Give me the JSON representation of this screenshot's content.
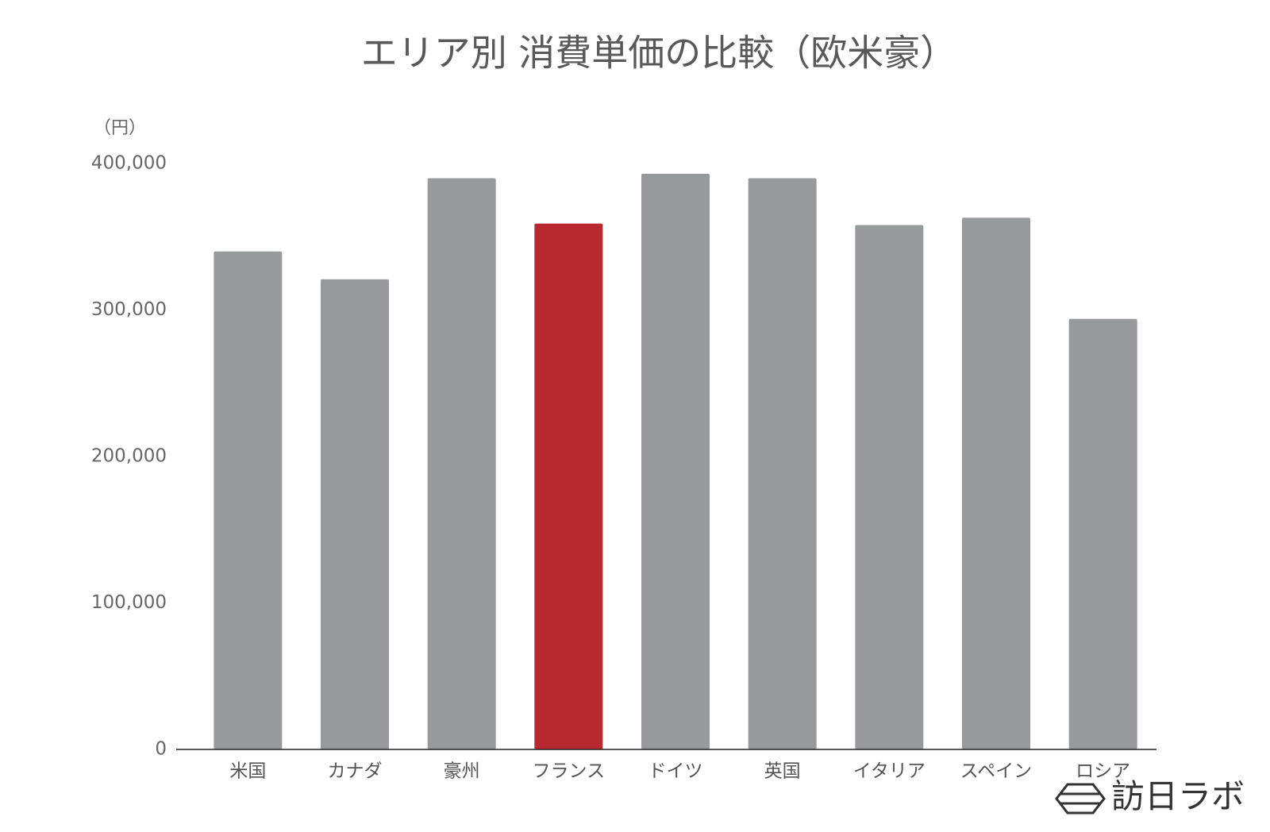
{
  "chart_data": {
    "type": "bar",
    "title": "エリア別 消費単価の比較（欧米豪）",
    "y_label": "（円）",
    "categories": [
      "米国",
      "カナダ",
      "豪州",
      "フランス",
      "ドイツ",
      "英国",
      "イタリア",
      "スペイン",
      "ロシア"
    ],
    "values": [
      340000,
      321000,
      390000,
      359000,
      393000,
      390000,
      358000,
      363000,
      294000
    ],
    "colors": [
      "#979a9a",
      "#979a9a",
      "#979a9a",
      "#b92a30",
      "#979a9a",
      "#979a9a",
      "#979a9a",
      "#979a9a",
      "#979a9a"
    ],
    "ylim": [
      0,
      400000
    ],
    "yticks": [
      0,
      {
        "value": 100000,
        "label": "100,000"
      },
      {
        "value": 200000,
        "label": "200,000"
      },
      {
        "value": 300000,
        "label": "300,000"
      },
      {
        "value": 400000,
        "label": "400,000"
      }
    ],
    "grid": false
  },
  "watermark": "訪日ラボ"
}
